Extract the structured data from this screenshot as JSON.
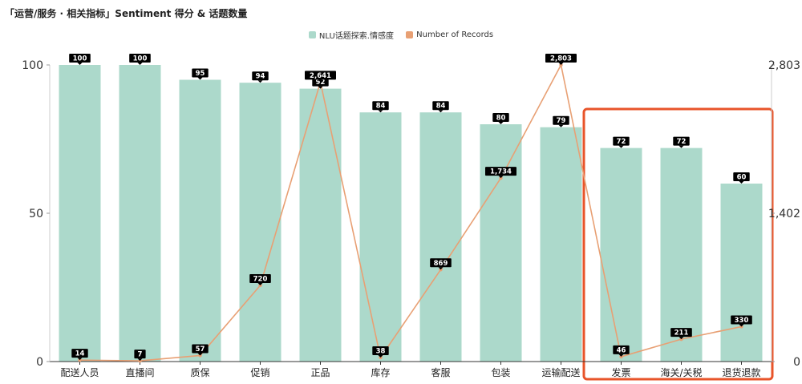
{
  "title": "「运营/服务 · 相关指标」Sentiment 得分 & 话题数量",
  "colors": {
    "bar": "#acd9cb",
    "line": "#e8a074",
    "highlight": "#e8542a",
    "label_bg": "#000000",
    "axis": "#333333"
  },
  "chart_data": {
    "type": "bar",
    "title": "「运营/服务 · 相关指标」Sentiment 得分 & 话题数量",
    "legend_position": "top-center",
    "categories": [
      "配送人员",
      "直播间",
      "质保",
      "促销",
      "正品",
      "库存",
      "客服",
      "包装",
      "运输配送",
      "发票",
      "海关/关税",
      "退货退款"
    ],
    "series": [
      {
        "name": "NLU话题探索.情感度",
        "type": "bar",
        "axis": "left",
        "values": [
          100,
          100,
          95,
          94,
          92,
          84,
          84,
          80,
          79,
          72,
          72,
          60
        ],
        "labels": [
          "100",
          "100",
          "95",
          "94",
          "92",
          "84",
          "84",
          "80",
          "79",
          "72",
          "72",
          "60"
        ]
      },
      {
        "name": "Number of Records",
        "type": "line",
        "axis": "right",
        "values": [
          14,
          7,
          57,
          720,
          2641,
          38,
          869,
          1734,
          2803,
          46,
          211,
          330
        ],
        "labels": [
          "14",
          "7",
          "57",
          "720",
          "2,641",
          "38",
          "869",
          "1,734",
          "2,803",
          "46",
          "211",
          "330"
        ]
      }
    ],
    "left_axis": {
      "ylim": [
        0,
        100
      ],
      "ticks": [
        "0",
        "50",
        "100"
      ]
    },
    "right_axis": {
      "ylim": [
        0,
        2803
      ],
      "ticks": [
        "0",
        "1,402",
        "2,803"
      ]
    },
    "grid": false,
    "highlight_categories": [
      "发票",
      "海关/关税",
      "退货退款"
    ]
  }
}
